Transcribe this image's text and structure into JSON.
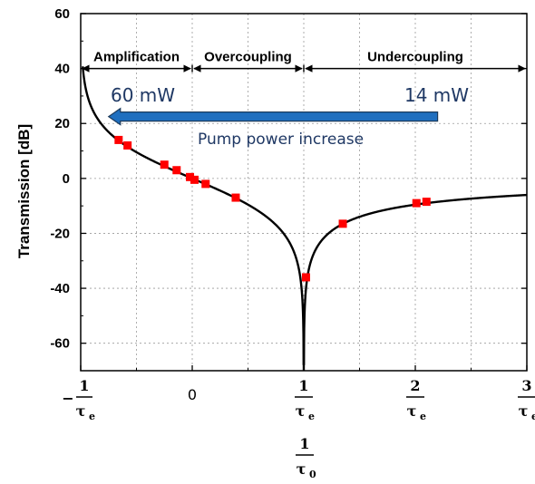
{
  "chart_data": {
    "type": "line",
    "ylabel": "Transmission [dB]",
    "ylim": [
      -70,
      60
    ],
    "xlim": [
      -1,
      3
    ],
    "y_ticks": [
      "60",
      "40",
      "20",
      "0",
      "-20",
      "-40",
      "-60"
    ],
    "x_ticks": [
      {
        "value": -1,
        "prefix": "−",
        "num": "1",
        "den": "τ",
        "sub": "e"
      },
      {
        "value": 0,
        "text": "0"
      },
      {
        "value": 1,
        "prefix": "",
        "num": "1",
        "den": "τ",
        "sub": "e"
      },
      {
        "value": 2,
        "prefix": "",
        "num": "2",
        "den": "τ",
        "sub": "e"
      },
      {
        "value": 3,
        "prefix": "",
        "num": "3",
        "den": "τ",
        "sub": "e"
      }
    ],
    "xlabel": {
      "num": "1",
      "den": "τ",
      "sub": "0"
    },
    "regions": [
      {
        "label": "Amplification",
        "from": -1,
        "to": 0
      },
      {
        "label": "Overcoupling",
        "from": 0,
        "to": 1
      },
      {
        "label": "Undercoupling",
        "from": 1,
        "to": 3
      }
    ],
    "curve": {
      "name": "",
      "formula": "20*log10(|x-1|/(x+1))",
      "color": "#000000"
    },
    "series": [
      {
        "name": "",
        "marker": "square",
        "color": "#ff0000",
        "x": [
          -0.66,
          -0.58,
          -0.25,
          -0.14,
          -0.02,
          0.02,
          0.12,
          0.39,
          1.02,
          1.35,
          2.01,
          2.1
        ],
        "y": [
          14,
          12,
          5,
          3,
          0.5,
          -0.5,
          -2,
          -7,
          -36,
          -16.5,
          -9,
          -8.5
        ]
      }
    ],
    "annotations": {
      "high_power": "60 mW",
      "low_power": "14 mW",
      "arrow_label": "Pump power increase",
      "arrow_from_x": 2.2,
      "arrow_to_x": -0.75,
      "arrow_y": 22.5
    }
  },
  "colors": {
    "arrow_fill": "#1f6fbf",
    "arrow_stroke": "#1b3a5c",
    "marker": "#ff0000",
    "text_blue": "#1f3864"
  }
}
